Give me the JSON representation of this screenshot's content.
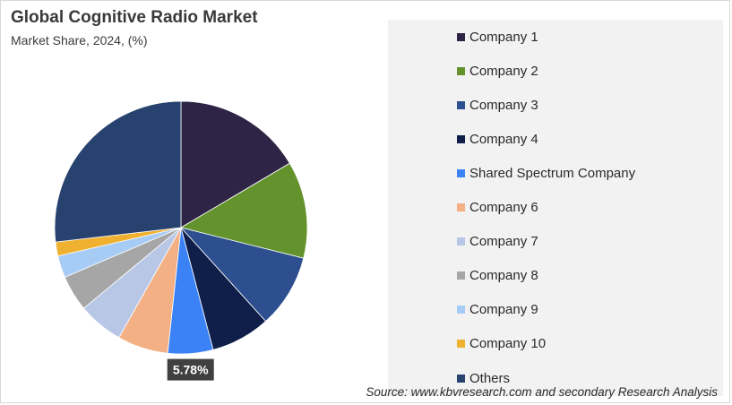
{
  "chart_data": {
    "type": "pie",
    "title": "Global Cognitive Radio Market",
    "subtitle": "Market Share, 2024, (%)",
    "categories": [
      "Company 1",
      "Company 2",
      "Company 3",
      "Company 4",
      "Shared Spectrum Company",
      "Company 6",
      "Company 7",
      "Company 8",
      "Company 9",
      "Company 10",
      "Others"
    ],
    "values": [
      16.5,
      12.4,
      9.4,
      7.6,
      5.78,
      6.5,
      5.8,
      4.6,
      2.8,
      1.8,
      26.82
    ],
    "colors": [
      "#2e2546",
      "#64922d",
      "#2d4f8f",
      "#0f1f4a",
      "#3b82f6",
      "#f2b084",
      "#b8c7e6",
      "#a6a6a6",
      "#a6cbf4",
      "#f0b030",
      "#27426f"
    ],
    "data_labels": [
      {
        "index": 4,
        "text": "5.78%"
      }
    ],
    "legend_position": "right",
    "start_angle_deg": 0,
    "direction": "clockwise"
  },
  "source": "Source: www.kbvresearch.com and secondary Research Analysis"
}
